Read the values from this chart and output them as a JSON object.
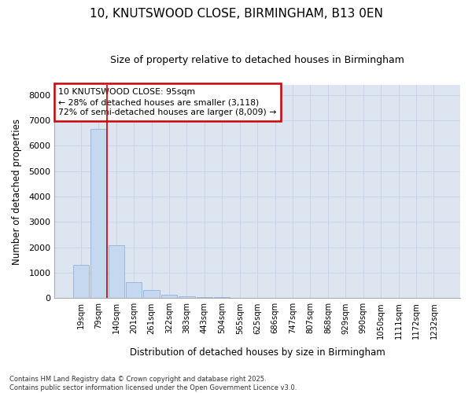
{
  "title_line1": "10, KNUTSWOOD CLOSE, BIRMINGHAM, B13 0EN",
  "title_line2": "Size of property relative to detached houses in Birmingham",
  "xlabel": "Distribution of detached houses by size in Birmingham",
  "ylabel": "Number of detached properties",
  "categories": [
    "19sqm",
    "79sqm",
    "140sqm",
    "201sqm",
    "261sqm",
    "322sqm",
    "383sqm",
    "443sqm",
    "504sqm",
    "565sqm",
    "625sqm",
    "686sqm",
    "747sqm",
    "807sqm",
    "868sqm",
    "929sqm",
    "990sqm",
    "1050sqm",
    "1111sqm",
    "1172sqm",
    "1232sqm"
  ],
  "values": [
    1310,
    6650,
    2090,
    640,
    305,
    145,
    75,
    40,
    25,
    15,
    8,
    0,
    0,
    0,
    0,
    0,
    0,
    0,
    0,
    0,
    0
  ],
  "bar_color": "#c5d8f0",
  "bar_edge_color": "#9ab8d8",
  "vline_color": "#cc0000",
  "vline_x_index": 1.5,
  "annotation_title": "10 KNUTSWOOD CLOSE: 95sqm",
  "annotation_line1": "← 28% of detached houses are smaller (3,118)",
  "annotation_line2": "72% of semi-detached houses are larger (8,009) →",
  "annotation_box_facecolor": "#ffffff",
  "annotation_box_edgecolor": "#cc0000",
  "ylim": [
    0,
    8400
  ],
  "yticks": [
    0,
    1000,
    2000,
    3000,
    4000,
    5000,
    6000,
    7000,
    8000
  ],
  "grid_color": "#c8d4e8",
  "plot_bg_color": "#dde6f0",
  "fig_bg_color": "#ffffff",
  "footer_line1": "Contains HM Land Registry data © Crown copyright and database right 2025.",
  "footer_line2": "Contains public sector information licensed under the Open Government Licence v3.0."
}
